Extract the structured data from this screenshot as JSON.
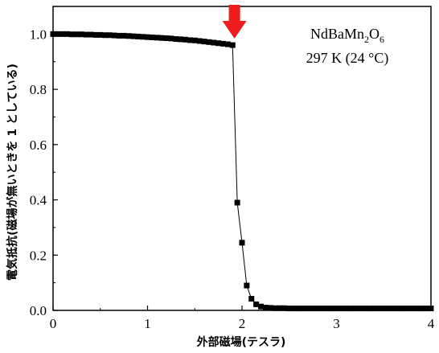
{
  "chart_data": {
    "type": "scatter",
    "title": "",
    "xlabel": "外部磁場(テスラ)",
    "ylabel": "電気抵抗(磁場が無いときを 1 としている)",
    "xlim": [
      0,
      4
    ],
    "ylim": [
      0,
      1.1
    ],
    "x_ticks": [
      "0",
      "1",
      "2",
      "3",
      "4"
    ],
    "y_ticks": [
      "0.0",
      "0.2",
      "0.4",
      "0.6",
      "0.8",
      "1.0"
    ],
    "annotation": {
      "material_base": "NdBaMn",
      "material_sub1": "2",
      "material_mid": "O",
      "material_sub2": "6",
      "temperature": "297 K (24 °C)"
    },
    "arrow": {
      "x": 1.92,
      "color": "#ee1c1c"
    },
    "series": [
      {
        "name": "",
        "color": "#000000",
        "x": [
          0.0,
          0.05,
          0.1,
          0.15,
          0.2,
          0.25,
          0.3,
          0.35,
          0.4,
          0.45,
          0.5,
          0.55,
          0.6,
          0.65,
          0.7,
          0.75,
          0.8,
          0.85,
          0.9,
          0.95,
          1.0,
          1.05,
          1.1,
          1.15,
          1.2,
          1.25,
          1.3,
          1.35,
          1.4,
          1.45,
          1.5,
          1.55,
          1.6,
          1.65,
          1.7,
          1.75,
          1.8,
          1.85,
          1.9,
          1.95,
          2.0,
          2.05,
          2.1,
          2.15,
          2.2,
          2.25,
          2.3,
          2.35,
          2.4,
          2.45,
          2.5,
          2.55,
          2.6,
          2.65,
          2.7,
          2.75,
          2.8,
          2.85,
          2.9,
          2.95,
          3.0,
          3.05,
          3.1,
          3.15,
          3.2,
          3.25,
          3.3,
          3.35,
          3.4,
          3.45,
          3.5,
          3.55,
          3.6,
          3.65,
          3.7,
          3.75,
          3.8,
          3.85,
          3.9,
          3.95,
          4.0
        ],
        "y": [
          1.0,
          1.0,
          1.0,
          1.0,
          0.999,
          0.999,
          0.999,
          0.998,
          0.998,
          0.997,
          0.997,
          0.996,
          0.996,
          0.995,
          0.994,
          0.994,
          0.993,
          0.992,
          0.991,
          0.99,
          0.989,
          0.988,
          0.987,
          0.986,
          0.985,
          0.984,
          0.982,
          0.981,
          0.98,
          0.978,
          0.977,
          0.975,
          0.973,
          0.971,
          0.969,
          0.967,
          0.965,
          0.963,
          0.96,
          0.39,
          0.245,
          0.09,
          0.042,
          0.022,
          0.014,
          0.01,
          0.009,
          0.008,
          0.008,
          0.008,
          0.007,
          0.007,
          0.007,
          0.007,
          0.007,
          0.007,
          0.007,
          0.007,
          0.007,
          0.007,
          0.007,
          0.007,
          0.007,
          0.007,
          0.007,
          0.007,
          0.007,
          0.007,
          0.007,
          0.007,
          0.007,
          0.007,
          0.007,
          0.007,
          0.007,
          0.007,
          0.007,
          0.007,
          0.007,
          0.007,
          0.007
        ]
      }
    ],
    "grid": false,
    "legend": "none"
  }
}
